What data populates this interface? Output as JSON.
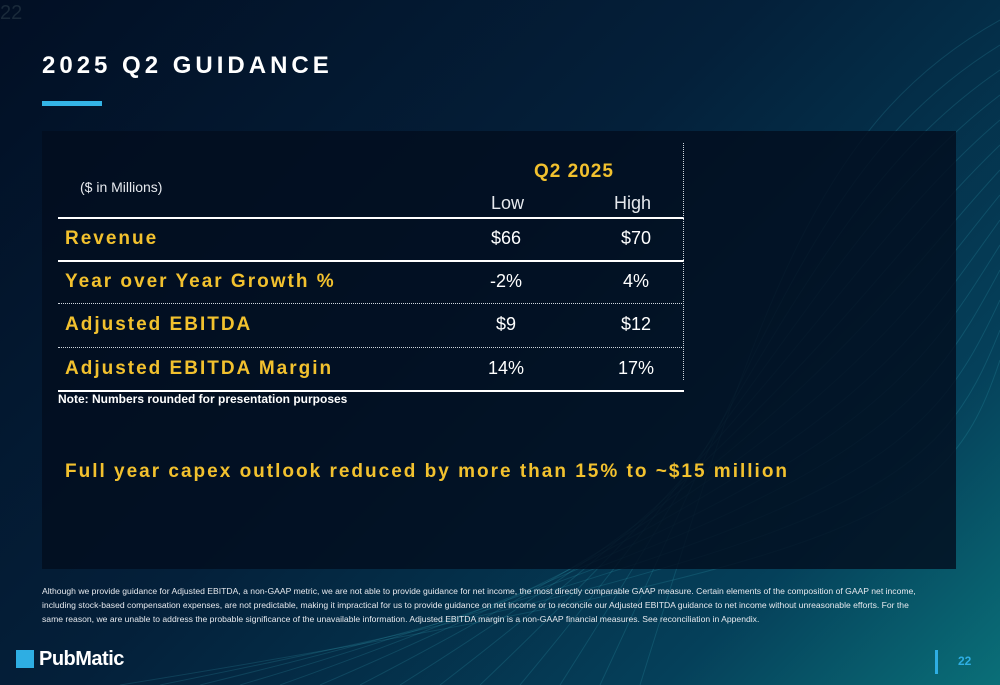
{
  "slide": {
    "corner_number": "22",
    "title": "2025 Q2 GUIDANCE",
    "page_number": "22"
  },
  "table": {
    "units_label": "($ in Millions)",
    "period_header": "Q2 2025",
    "col_low": "Low",
    "col_high": "High",
    "rows": [
      {
        "label": "Revenue",
        "low": "$66",
        "high": "$70"
      },
      {
        "label": "Year over Year Growth %",
        "low": "-2%",
        "high": "4%"
      },
      {
        "label": "Adjusted EBITDA",
        "low": "$9",
        "high": "$12"
      },
      {
        "label": "Adjusted EBITDA Margin",
        "low": "14%",
        "high": "17%"
      }
    ]
  },
  "note": "Note: Numbers rounded for presentation purposes",
  "capex_statement": "Full year capex outlook reduced by more than 15% to ~$15 million",
  "footnote": "Although we provide guidance for Adjusted EBITDA, a non-GAAP metric, we are not able to provide guidance for net income, the most directly comparable GAAP measure. Certain elements of the composition of GAAP net income, including stock-based compensation expenses, are not predictable, making it impractical for us to provide guidance on net income or to reconcile our Adjusted EBITDA guidance to net income without unreasonable efforts. For the same reason, we are unable to address the probable significance of the unavailable information.  Adjusted EBITDA margin is a non-GAAP financial measures. See reconciliation in Appendix.",
  "logo": {
    "text": "PubMatic",
    "color": "#2eaee3"
  },
  "colors": {
    "accent_gold": "#f2c12e",
    "accent_blue": "#2eaee3"
  }
}
